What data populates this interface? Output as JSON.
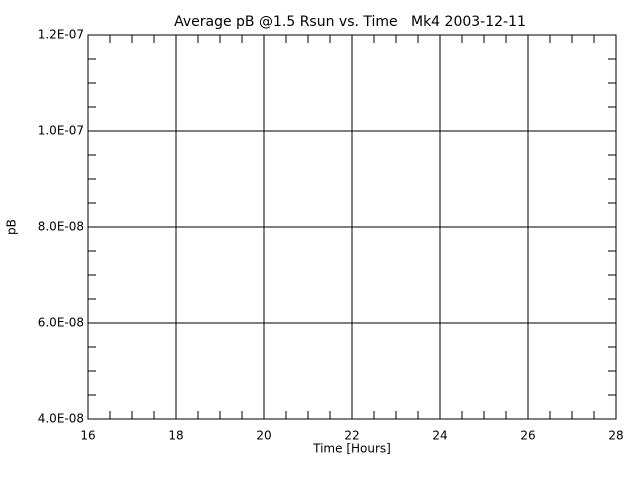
{
  "chart_data": {
    "type": "line",
    "title": "Average pB @1.5 Rsun vs. Time   Mk4 2003-12-11",
    "xlabel": "Time [Hours]",
    "ylabel": "pB",
    "xlim": [
      16,
      28
    ],
    "xticks": [
      16,
      18,
      20,
      22,
      24,
      26,
      28
    ],
    "ylim": [
      4e-08,
      1.2e-07
    ],
    "yticks": [
      {
        "value": 4e-08,
        "label": "4.0E-08"
      },
      {
        "value": 6e-08,
        "label": "6.0E-08"
      },
      {
        "value": 8e-08,
        "label": "8.0E-08"
      },
      {
        "value": 1e-07,
        "label": "1.0E-07"
      },
      {
        "value": 1.2e-07,
        "label": "1.2E-07"
      }
    ],
    "grid": true,
    "series": []
  }
}
